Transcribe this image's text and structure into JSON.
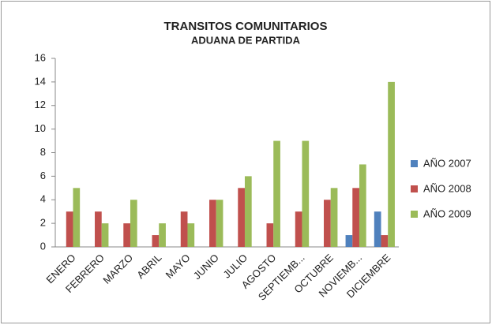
{
  "chart_data": {
    "type": "bar",
    "title": "TRANSITOS COMUNITARIOS",
    "subtitle": "ADUANA DE PARTIDA",
    "categories": [
      "ENERO",
      "FEBRERO",
      "MARZO",
      "ABRIL",
      "MAYO",
      "JUNIO",
      "JULIO",
      "AGOSTO",
      "SEPTIEMB...",
      "OCTUBRE",
      "NOVIEMB...",
      "DICIEMBRE"
    ],
    "series": [
      {
        "name": "AÑO 2007",
        "color": "#4f81bd",
        "values": [
          0,
          0,
          0,
          0,
          0,
          0,
          0,
          0,
          0,
          0,
          1,
          3
        ]
      },
      {
        "name": "AÑO 2008",
        "color": "#c0504d",
        "values": [
          3,
          3,
          2,
          1,
          3,
          4,
          5,
          2,
          3,
          4,
          5,
          1
        ]
      },
      {
        "name": "AÑO 2009",
        "color": "#9bbb59",
        "values": [
          5,
          2,
          4,
          2,
          2,
          4,
          6,
          9,
          9,
          5,
          7,
          14
        ]
      }
    ],
    "ylim": [
      0,
      16
    ],
    "yticks": [
      0,
      2,
      4,
      6,
      8,
      10,
      12,
      14,
      16
    ],
    "legend": "right"
  }
}
